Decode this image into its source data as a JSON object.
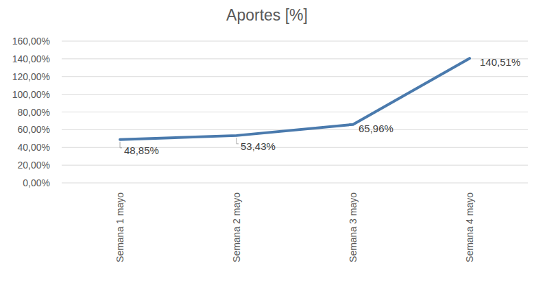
{
  "chart_data": {
    "type": "line",
    "title": "Aportes [%]",
    "categories": [
      "Semana 1 mayo",
      "Semana 2 mayo",
      "Semana 3 mayo",
      "Semana 4 mayo"
    ],
    "values": [
      48.85,
      53.43,
      65.96,
      140.51
    ],
    "value_labels": [
      "48,85%",
      "53,43%",
      "65,96%",
      "140,51%"
    ],
    "color": "#4a7aad",
    "ylim": [
      0,
      160
    ],
    "yticks": [
      {
        "value": 0,
        "label": "0,00%"
      },
      {
        "value": 20,
        "label": "20,00%"
      },
      {
        "value": 40,
        "label": "40,00%"
      },
      {
        "value": 60,
        "label": "60,00%"
      },
      {
        "value": 80,
        "label": "80,00%"
      },
      {
        "value": 100,
        "label": "100,00%"
      },
      {
        "value": 120,
        "label": "120,00%"
      },
      {
        "value": 140,
        "label": "140,00%"
      },
      {
        "value": 160,
        "label": "160,00%"
      }
    ],
    "grid": true,
    "data_labels": true
  }
}
